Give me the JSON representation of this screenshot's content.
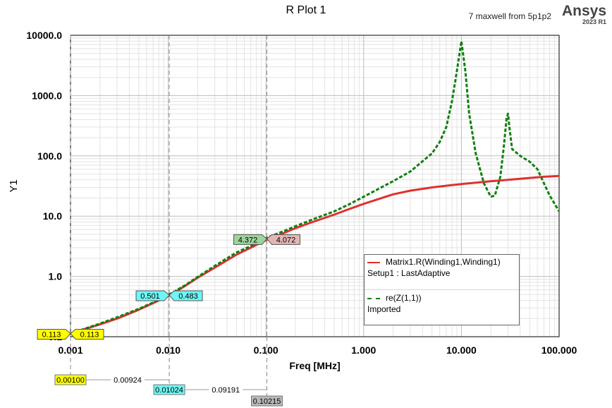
{
  "header": {
    "title": "R Plot 1",
    "source": "7 maxwell from 5p1p2",
    "brand": "Ansys",
    "release": "2023 R1"
  },
  "legend": {
    "series1_name": "Matrix1.R(Winding1,Winding1)",
    "series1_sub": "Setup1 : LastAdaptive",
    "series2_name": "re(Z(1,1))",
    "series2_sub": "Imported"
  },
  "colors": {
    "series1": "#e03030",
    "series2": "#108010",
    "marker_yellow": "#ffff00",
    "marker_cyan": "#6ff5f5",
    "marker_gray": "#b9b9b9",
    "marker_green": "#9dd49d",
    "marker_rose": "#e3b5b5"
  },
  "chart_data": {
    "type": "line",
    "xscale": "log",
    "yscale": "log",
    "xlabel": "Freq [MHz]",
    "ylabel": "Y1",
    "xlim": [
      0.001,
      100
    ],
    "ylim": [
      0.1,
      10000
    ],
    "x_ticks": [
      "0.001",
      "0.010",
      "0.100",
      "1.000",
      "10.000",
      "100.000"
    ],
    "y_ticks": [
      "0.1",
      "1.0",
      "10.0",
      "100.0",
      "1000.0",
      "10000.0"
    ],
    "grid": true,
    "legend_position": "bottom-right",
    "series": [
      {
        "name": "Matrix1.R(Winding1,Winding1)",
        "color": "#e03030",
        "style": "solid",
        "x": [
          0.001,
          0.002,
          0.003,
          0.005,
          0.007,
          0.01024,
          0.015,
          0.02,
          0.03,
          0.05,
          0.07,
          0.10215,
          0.15,
          0.2,
          0.3,
          0.5,
          0.7,
          1,
          2,
          3,
          5,
          7,
          10,
          20,
          30,
          50,
          70,
          100
        ],
        "y": [
          0.113,
          0.16,
          0.2,
          0.28,
          0.36,
          0.483,
          0.7,
          0.95,
          1.4,
          2.3,
          3.0,
          4.072,
          5.2,
          6.3,
          8.0,
          10.6,
          13.0,
          16.0,
          23.0,
          26.5,
          30.0,
          32.0,
          34.0,
          38.0,
          40.0,
          43.0,
          45.0,
          46.5
        ]
      },
      {
        "name": "re(Z(1,1))",
        "color": "#108010",
        "style": "dashed",
        "x": [
          0.001,
          0.002,
          0.003,
          0.005,
          0.007,
          0.01024,
          0.015,
          0.02,
          0.03,
          0.05,
          0.07,
          0.10215,
          0.15,
          0.2,
          0.3,
          0.5,
          0.7,
          1,
          2,
          3,
          5,
          6,
          7,
          8,
          9,
          10,
          11,
          12,
          14,
          17,
          20,
          22,
          25,
          27,
          29,
          30,
          31,
          33,
          40,
          50,
          60,
          70,
          80,
          100
        ],
        "y": [
          0.113,
          0.165,
          0.21,
          0.29,
          0.37,
          0.501,
          0.72,
          0.98,
          1.5,
          2.5,
          3.2,
          4.372,
          5.6,
          6.8,
          8.8,
          12.0,
          15.5,
          21.0,
          38.0,
          55.0,
          110.0,
          170.0,
          300.0,
          800.0,
          2600.0,
          8000.0,
          2500.0,
          500.0,
          110.0,
          35.0,
          21.0,
          22.0,
          45.0,
          130.0,
          420.0,
          500.0,
          300.0,
          130.0,
          100.0,
          80.0,
          60.0,
          35.0,
          22.0,
          12.0
        ]
      }
    ],
    "markers": [
      {
        "x": 0.001,
        "y": 0.113,
        "x_label": "0.00100",
        "label_left": "0.113",
        "label_right": "0.113",
        "color_left": "#ffff00",
        "color_right": "#ffff00",
        "delta_label": "0.00924"
      },
      {
        "x": 0.01024,
        "y": 0.49,
        "x_label": "0.01024",
        "label_left": "0.501",
        "label_right": "0.483",
        "color_left": "#6ff5f5",
        "color_right": "#6ff5f5",
        "delta_label": "0.09191"
      },
      {
        "x": 0.10215,
        "y": 4.2,
        "x_label": "0.10215",
        "label_left": "4.372",
        "label_right": "4.072",
        "color_left": "#9dd49d",
        "color_right": "#e3b5b5",
        "delta_label": ""
      }
    ]
  }
}
